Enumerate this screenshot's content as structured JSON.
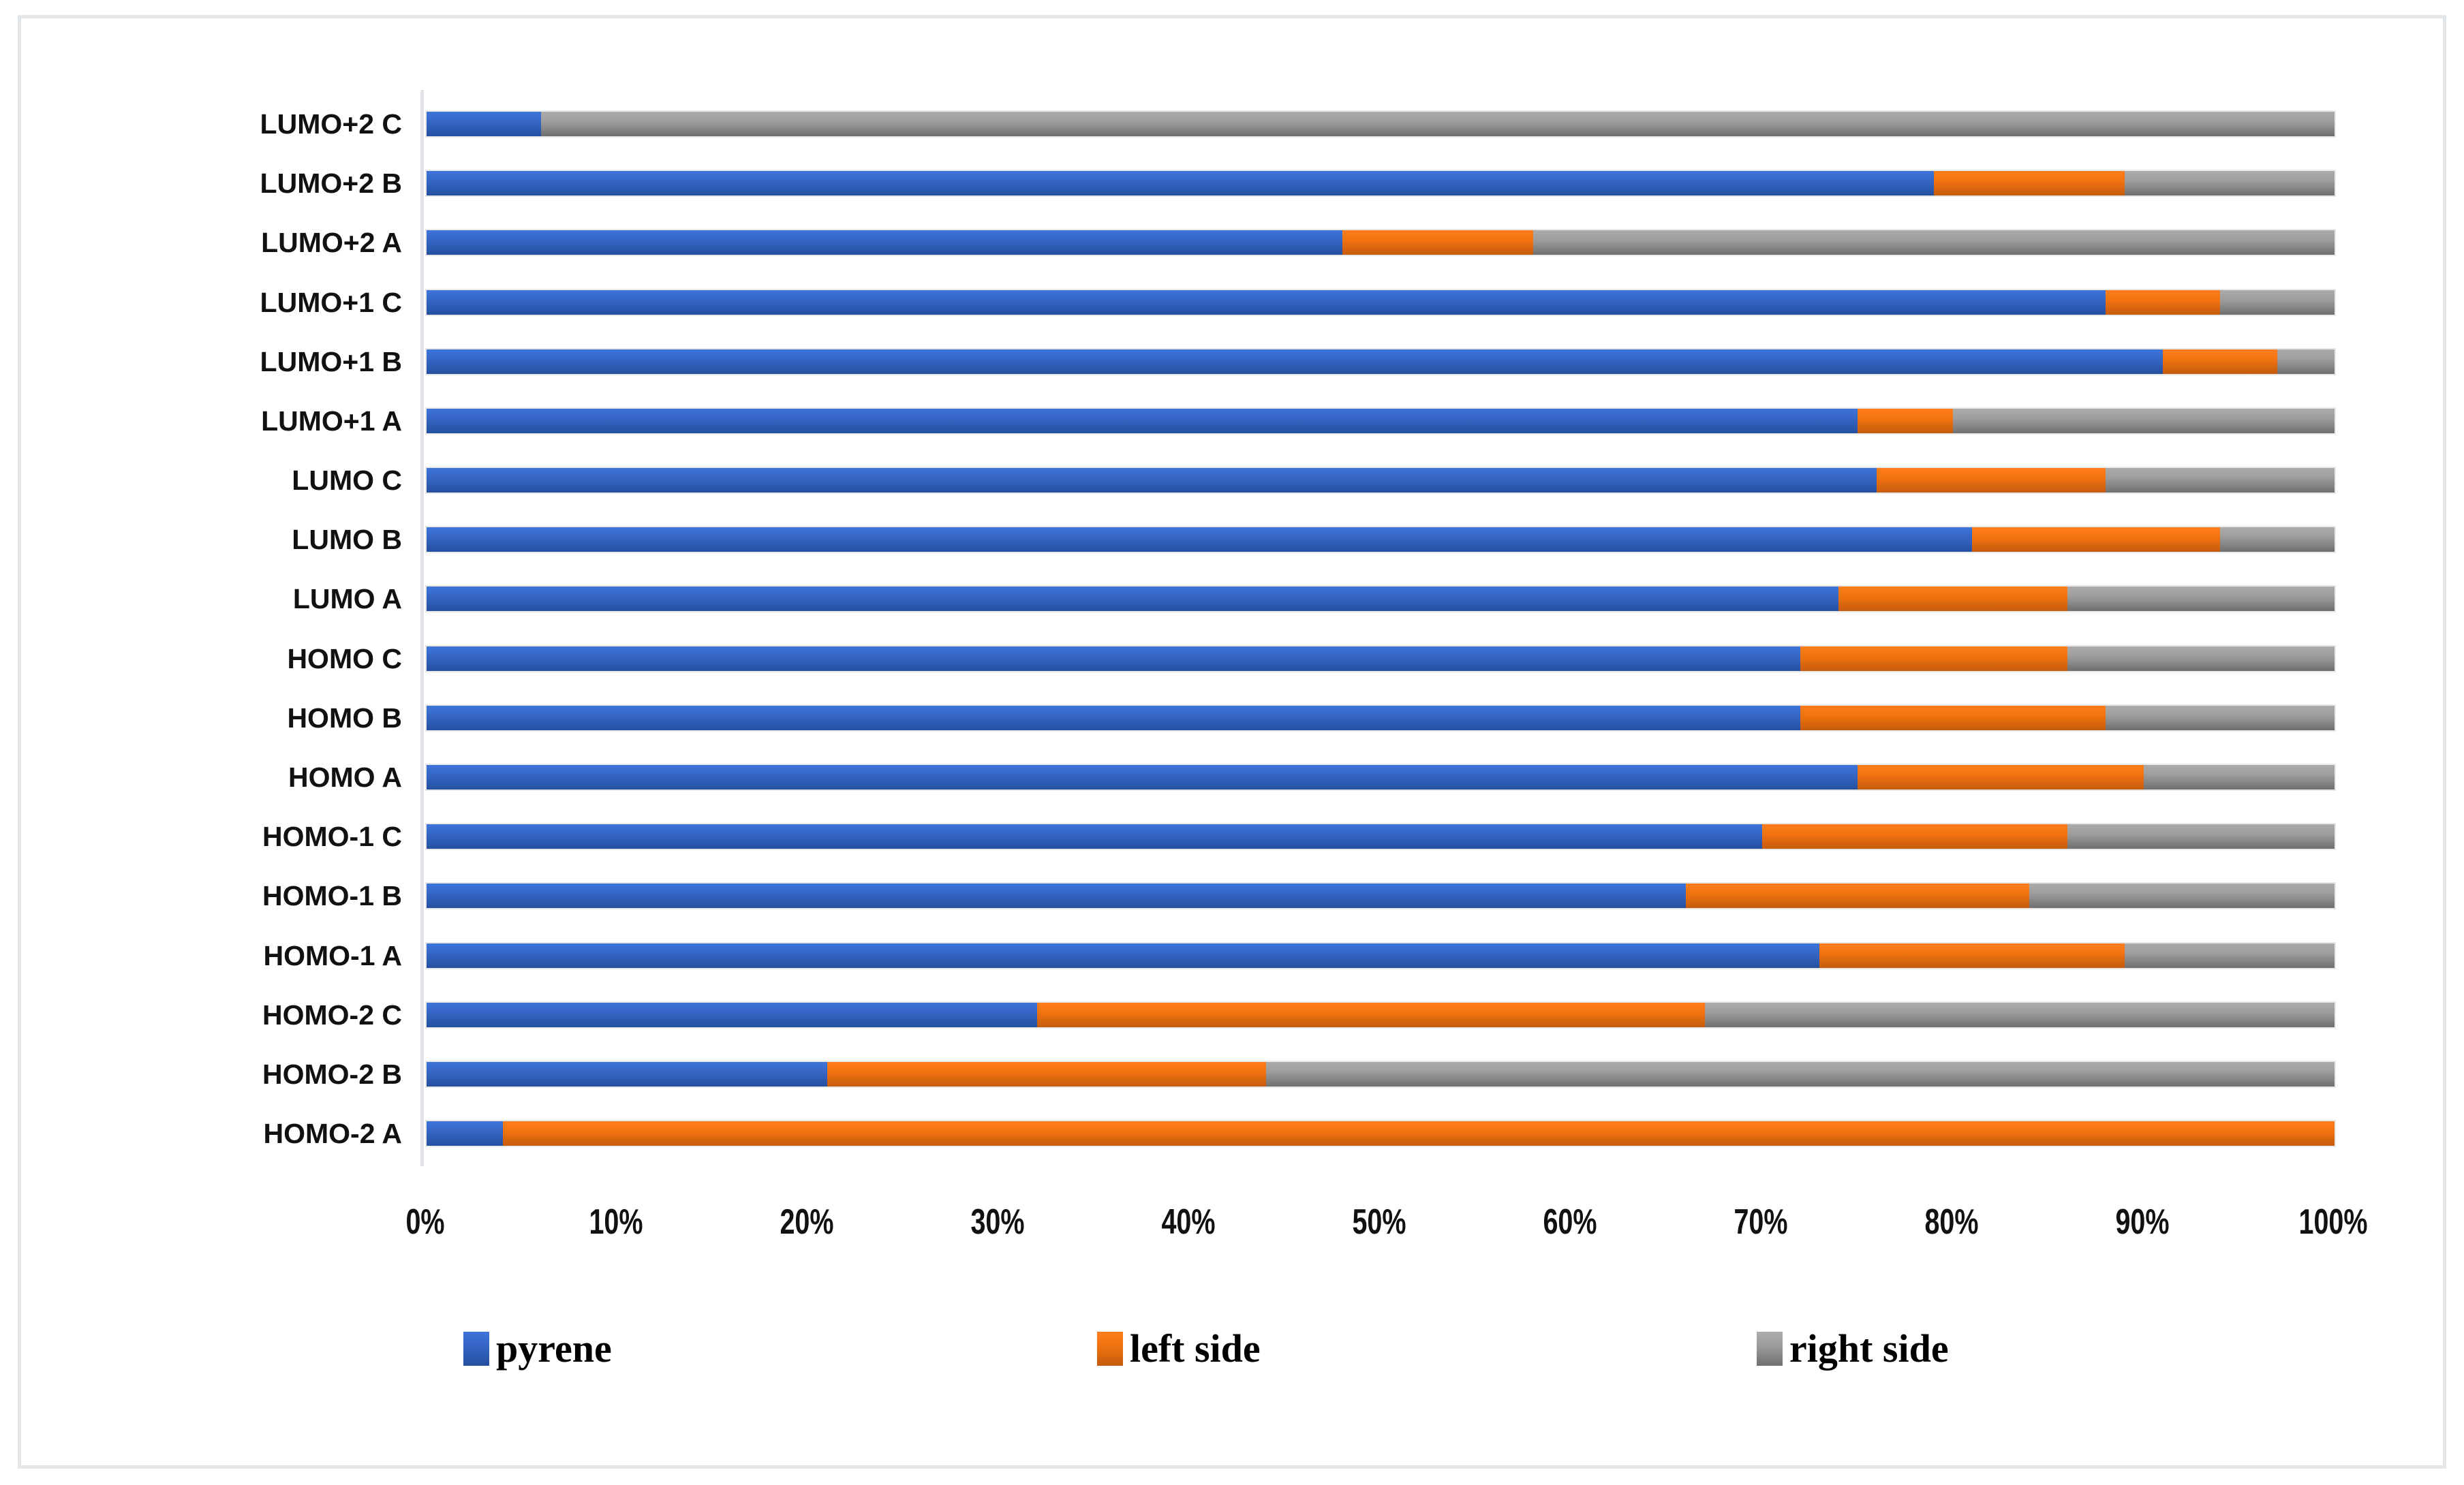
{
  "figure": {
    "background_color": "#FFFFFF",
    "border_color": "#E4E7EA"
  },
  "chart_data": {
    "type": "bar",
    "orientation": "horizontal",
    "stacked": true,
    "stacked_to_100_percent": true,
    "title": "",
    "xlabel": "",
    "ylabel": "",
    "xlim": [
      0,
      100
    ],
    "grid": false,
    "legend_position": "bottom",
    "categories_top_to_bottom": [
      "LUMO+2 C",
      "LUMO+2 B",
      "LUMO+2 A",
      "LUMO+1 C",
      "LUMO+1 B",
      "LUMO+1 A",
      "LUMO C",
      "LUMO B",
      "LUMO A",
      "HOMO C",
      "HOMO B",
      "HOMO A",
      "HOMO-1 C",
      "HOMO-1 B",
      "HOMO-1 A",
      "HOMO-2 C",
      "HOMO-2 B",
      "HOMO-2 A"
    ],
    "series": [
      {
        "name": "pyrene",
        "color": "#4472C4",
        "values": [
          6,
          79,
          48,
          88,
          91,
          75,
          76,
          81,
          74,
          72,
          72,
          75,
          70,
          66,
          73,
          32,
          21,
          4
        ]
      },
      {
        "name": "left side",
        "color": "#ED7D31",
        "values": [
          0,
          10,
          10,
          6,
          6,
          5,
          12,
          13,
          12,
          14,
          16,
          15,
          16,
          18,
          16,
          35,
          23,
          96
        ]
      },
      {
        "name": "right side",
        "color": "#A5A5A5",
        "values": [
          94,
          11,
          42,
          6,
          3,
          20,
          12,
          6,
          14,
          14,
          12,
          10,
          14,
          16,
          11,
          33,
          56,
          0
        ]
      }
    ],
    "x_ticks": [
      "0%",
      "10%",
      "20%",
      "30%",
      "40%",
      "50%",
      "60%",
      "70%",
      "80%",
      "90%",
      "100%"
    ]
  }
}
